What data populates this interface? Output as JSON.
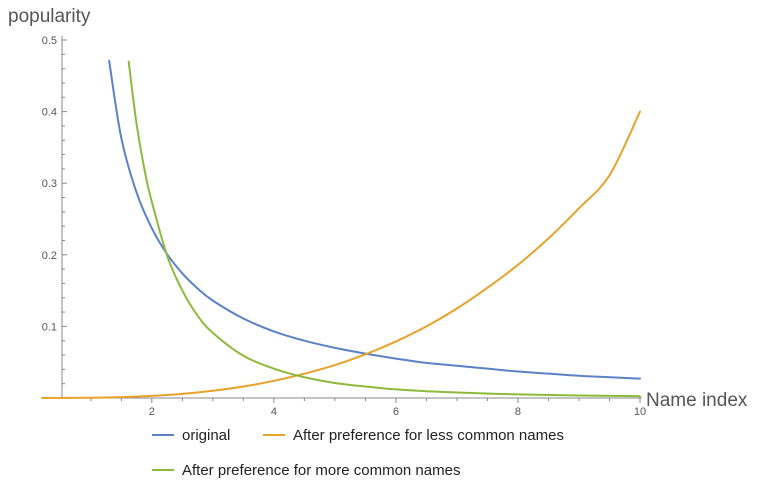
{
  "chart_data": {
    "type": "line",
    "xlabel": "Name index",
    "ylabel": "popularity",
    "xlim": [
      0.2,
      10
    ],
    "ylim": [
      0,
      0.5
    ],
    "x_ticks": [
      2,
      4,
      6,
      8,
      10
    ],
    "y_ticks": [
      0.1,
      0.2,
      0.3,
      0.4,
      0.5
    ],
    "grid": false,
    "legend_placement": "bottom",
    "series": [
      {
        "name": "original",
        "color": "#5b82c6",
        "x": [
          1.3,
          1.5,
          1.75,
          2.0,
          2.25,
          2.5,
          2.75,
          3.0,
          3.5,
          4.0,
          4.5,
          5.0,
          5.5,
          6.0,
          6.5,
          7.0,
          7.5,
          8.0,
          8.5,
          9.0,
          9.5,
          10.0
        ],
        "y": [
          0.471,
          0.363,
          0.287,
          0.237,
          0.201,
          0.174,
          0.153,
          0.136,
          0.111,
          0.093,
          0.08,
          0.07,
          0.062,
          0.055,
          0.049,
          0.045,
          0.041,
          0.037,
          0.034,
          0.031,
          0.029,
          0.027
        ]
      },
      {
        "name": "After preference for less common names",
        "color": "#e8a22a",
        "x": [
          0.2,
          1.0,
          1.5,
          2.0,
          2.5,
          3.0,
          3.5,
          4.0,
          4.5,
          5.0,
          5.5,
          6.0,
          6.5,
          7.0,
          7.5,
          8.0,
          8.5,
          9.0,
          9.5,
          10.0
        ],
        "y": [
          0.0,
          0.0004,
          0.0013,
          0.003,
          0.0058,
          0.0101,
          0.016,
          0.024,
          0.034,
          0.046,
          0.061,
          0.079,
          0.1,
          0.125,
          0.154,
          0.186,
          0.223,
          0.265,
          0.311,
          0.4
        ]
      },
      {
        "name": "After preference for more common names",
        "color": "#8dba3b",
        "x": [
          1.62,
          1.75,
          1.9,
          2.0,
          2.25,
          2.5,
          2.75,
          3.0,
          3.5,
          4.0,
          4.5,
          5.0,
          5.5,
          6.0,
          6.5,
          7.0,
          8.0,
          9.0,
          10.0
        ],
        "y": [
          0.47,
          0.383,
          0.31,
          0.274,
          0.199,
          0.15,
          0.115,
          0.091,
          0.059,
          0.041,
          0.029,
          0.021,
          0.016,
          0.012,
          0.0095,
          0.0076,
          0.005,
          0.0035,
          0.0025
        ]
      }
    ]
  }
}
